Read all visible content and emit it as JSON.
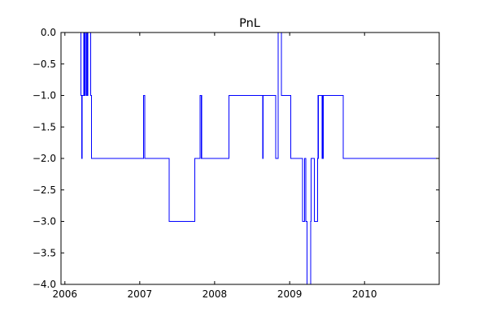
{
  "chart_data": {
    "type": "line",
    "title": "PnL",
    "xlabel": "",
    "ylabel": "",
    "x_axis_kind": "date",
    "xlim": [
      "2005-12-13",
      "2010-12-31"
    ],
    "ylim": [
      -4.0,
      0.0
    ],
    "grid": false,
    "legend": "none",
    "x_ticks": [
      {
        "value": "2006-01-01",
        "label": "2006"
      },
      {
        "value": "2007-01-01",
        "label": "2007"
      },
      {
        "value": "2008-01-01",
        "label": "2008"
      },
      {
        "value": "2009-01-01",
        "label": "2009"
      },
      {
        "value": "2010-01-01",
        "label": "2010"
      }
    ],
    "y_ticks": [
      0.0,
      -0.5,
      -1.0,
      -1.5,
      -2.0,
      -2.5,
      -3.0,
      -3.5,
      -4.0
    ],
    "y_tick_labels": [
      "0.0",
      "−0.5",
      "−1.0",
      "−1.5",
      "−2.0",
      "−2.5",
      "−3.0",
      "−3.5",
      "−4.0"
    ],
    "line_color": "#0000ff",
    "step": true,
    "series": [
      {
        "x": [
          "2006-03-18",
          "2006-03-20",
          "2006-03-24",
          "2006-03-26",
          "2006-04-03",
          "2006-04-08",
          "2006-04-10",
          "2006-04-18",
          "2006-04-23",
          "2006-05-07",
          "2006-05-10",
          "2007-01-19",
          "2007-01-26",
          "2007-05-25",
          "2007-09-26",
          "2007-10-22",
          "2007-10-29",
          "2008-03-11",
          "2008-08-22",
          "2008-08-25",
          "2008-10-25",
          "2008-11-06",
          "2008-11-21",
          "2008-11-26",
          "2009-01-07",
          "2009-03-05",
          "2009-03-15",
          "2009-03-20",
          "2009-03-27",
          "2009-04-13",
          "2009-04-15",
          "2009-05-01",
          "2009-05-04",
          "2009-05-17",
          "2009-05-20",
          "2009-06-08",
          "2009-06-13",
          "2009-06-17",
          "2009-06-21",
          "2009-09-19",
          "2010-12-31"
        ],
        "y": [
          0,
          -1,
          -2,
          -1,
          0,
          -1,
          0,
          -1,
          0,
          -1,
          -2,
          -1,
          -2,
          -3,
          -2,
          -1,
          -2,
          -1,
          -2,
          -1,
          -2,
          0,
          -1,
          -1,
          -2,
          -3,
          -2,
          -3,
          -4,
          -3,
          -2,
          -3,
          -3,
          -2,
          -1,
          -2,
          -1,
          -1,
          -1,
          -2,
          -2
        ]
      }
    ]
  }
}
